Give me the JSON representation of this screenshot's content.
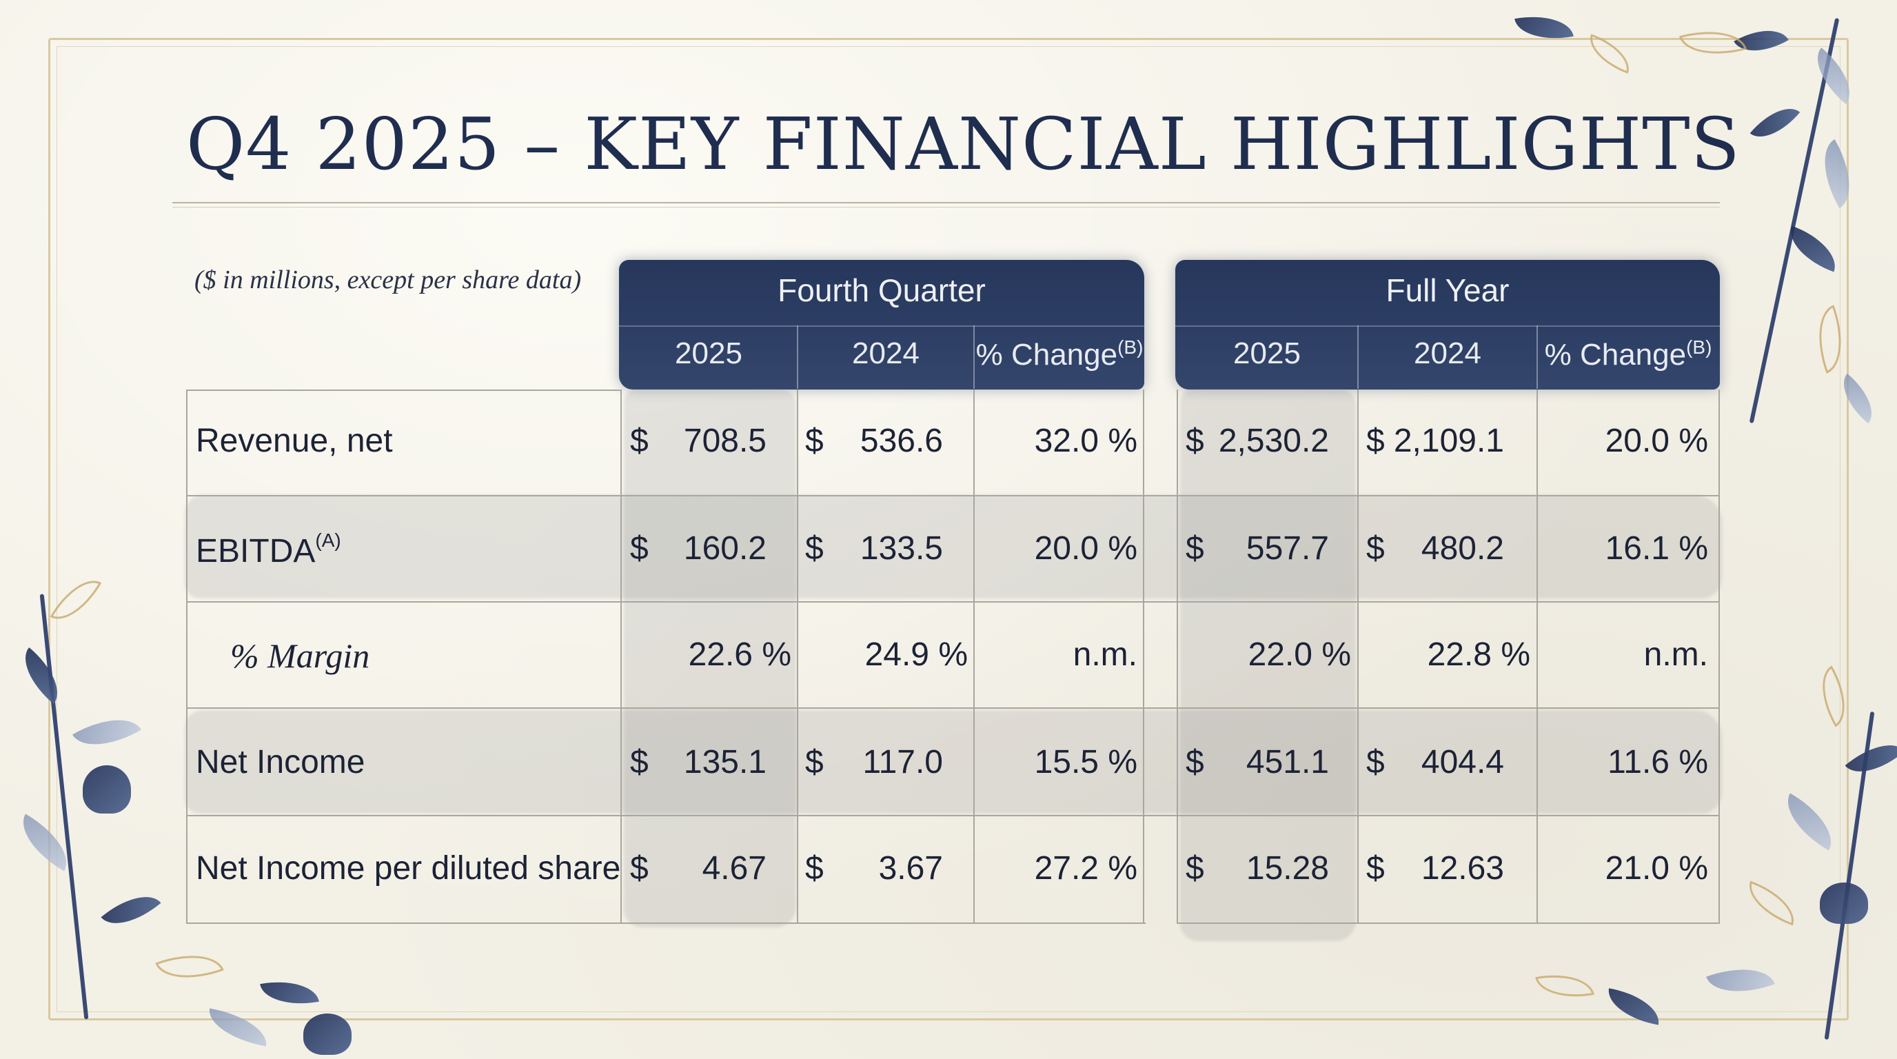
{
  "title": "Q4 2025 – KEY FINANCIAL HIGHLIGHTS",
  "units_note": "($ in millions, except per share data)",
  "groups": {
    "q": {
      "label": "Fourth Quarter",
      "col1": "2025",
      "col2": "2024",
      "col3": "% Change",
      "col3_sup": "(B)"
    },
    "fy": {
      "label": "Full Year",
      "col1": "2025",
      "col2": "2024",
      "col3": "% Change",
      "col3_sup": "(B)"
    }
  },
  "currency": "$",
  "rows": [
    {
      "label": "Revenue, net",
      "sup": "",
      "q25": "708.5",
      "q24": "536.6",
      "qchg": "32.0 %",
      "fy25": "2,530.2",
      "fy24": "2,109.1",
      "fychg": "20.0 %"
    },
    {
      "label": "EBITDA",
      "sup": "(A)",
      "q25": "160.2",
      "q24": "133.5",
      "qchg": "20.0 %",
      "fy25": "557.7",
      "fy24": "480.2",
      "fychg": "16.1 %"
    },
    {
      "label": "% Margin",
      "sup": "",
      "q25": "22.6 %",
      "q24": "24.9 %",
      "qchg": "n.m.",
      "fy25": "22.0 %",
      "fy24": "22.8 %",
      "fychg": "n.m."
    },
    {
      "label": "Net Income",
      "sup": "",
      "q25": "135.1",
      "q24": "117.0",
      "qchg": "15.5 %",
      "fy25": "451.1",
      "fy24": "404.4",
      "fychg": "11.6 %"
    },
    {
      "label": "Net Income per diluted share",
      "sup": "",
      "q25": "4.67",
      "q24": "3.67",
      "qchg": "27.2 %",
      "fy25": "15.28",
      "fy24": "12.63",
      "fychg": "21.0 %"
    }
  ],
  "colors": {
    "navy": "#27375c",
    "paper": "#f3f0e6",
    "gold": "#d9c9a0",
    "wash": "#9a9a9a"
  }
}
